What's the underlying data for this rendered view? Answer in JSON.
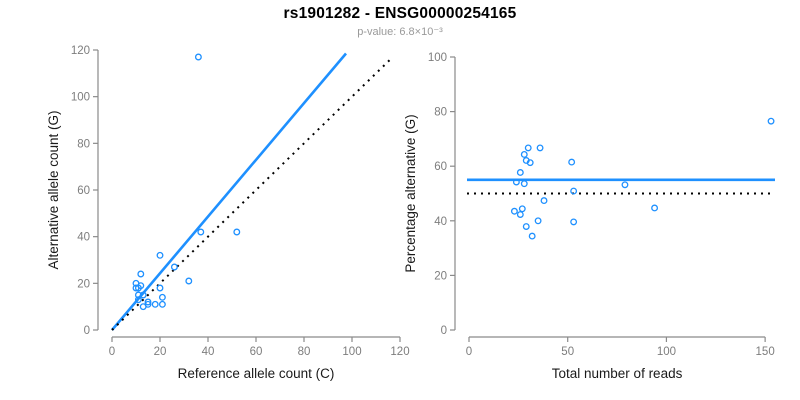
{
  "header": {
    "title": "rs1901282 - ENSG00000254165",
    "subtitle": "p-value: 6.8×10⁻³"
  },
  "colors": {
    "point_blue": "#1E90FF",
    "line_blue": "#1E90FF",
    "dotted_black": "#000000",
    "axis_gray": "#8a8a8a",
    "tick_label_gray": "#7d7d7d",
    "axis_title_black": "#1a1a1a"
  },
  "chart_data": [
    {
      "type": "scatter",
      "name": "allele-counts-scatter",
      "xlabel": "Reference allele count (C)",
      "ylabel": "Alternative allele count (G)",
      "xlim": [
        0,
        120
      ],
      "ylim": [
        0,
        120
      ],
      "xticks": [
        0,
        20,
        40,
        60,
        80,
        100,
        120
      ],
      "yticks": [
        0,
        20,
        40,
        60,
        80,
        100,
        120
      ],
      "grid": false,
      "legend": "none",
      "points": [
        [
          36,
          117
        ],
        [
          20,
          32
        ],
        [
          26,
          27
        ],
        [
          12,
          24
        ],
        [
          32,
          21
        ],
        [
          37,
          42
        ],
        [
          52,
          42
        ],
        [
          10,
          20
        ],
        [
          10,
          18
        ],
        [
          12,
          19
        ],
        [
          11,
          18
        ],
        [
          20,
          18
        ],
        [
          11,
          15
        ],
        [
          13,
          15
        ],
        [
          11,
          13
        ],
        [
          21,
          14
        ],
        [
          15,
          12
        ],
        [
          13,
          10
        ],
        [
          15,
          11
        ],
        [
          18,
          11
        ],
        [
          21,
          11
        ]
      ],
      "lines": [
        {
          "name": "fit-line",
          "style": "solid",
          "color": "#1E90FF",
          "from": [
            0,
            0
          ],
          "to": [
            97.5,
            118.5
          ]
        },
        {
          "name": "identity-line",
          "style": "dotted",
          "color": "#000000",
          "from": [
            0,
            0
          ],
          "to": [
            117,
            117
          ]
        }
      ]
    },
    {
      "type": "scatter",
      "name": "percentage-scatter",
      "xlabel": "Total number of reads",
      "ylabel": "Percentage alternative (G)",
      "xlim": [
        0,
        155
      ],
      "ylim": [
        0,
        100
      ],
      "xticks": [
        0,
        50,
        100,
        150
      ],
      "yticks": [
        0,
        20,
        40,
        60,
        80,
        100
      ],
      "grid": false,
      "legend": "none",
      "points": [
        [
          153,
          76.5
        ],
        [
          52,
          61.5
        ],
        [
          53,
          50.9
        ],
        [
          36,
          66.7
        ],
        [
          53,
          39.6
        ],
        [
          79,
          53.2
        ],
        [
          94,
          44.7
        ],
        [
          30,
          66.7
        ],
        [
          28,
          64.3
        ],
        [
          31,
          61.3
        ],
        [
          29,
          62.1
        ],
        [
          38,
          47.4
        ],
        [
          26,
          57.7
        ],
        [
          28,
          53.6
        ],
        [
          24,
          54.2
        ],
        [
          35,
          40.0
        ],
        [
          27,
          44.4
        ],
        [
          23,
          43.5
        ],
        [
          26,
          42.3
        ],
        [
          29,
          37.9
        ],
        [
          32,
          34.4
        ]
      ],
      "lines": [
        {
          "name": "mean-line",
          "style": "solid",
          "color": "#1E90FF",
          "y": 55
        },
        {
          "name": "expected-line",
          "style": "dotted",
          "color": "#000000",
          "y": 50
        }
      ]
    }
  ]
}
